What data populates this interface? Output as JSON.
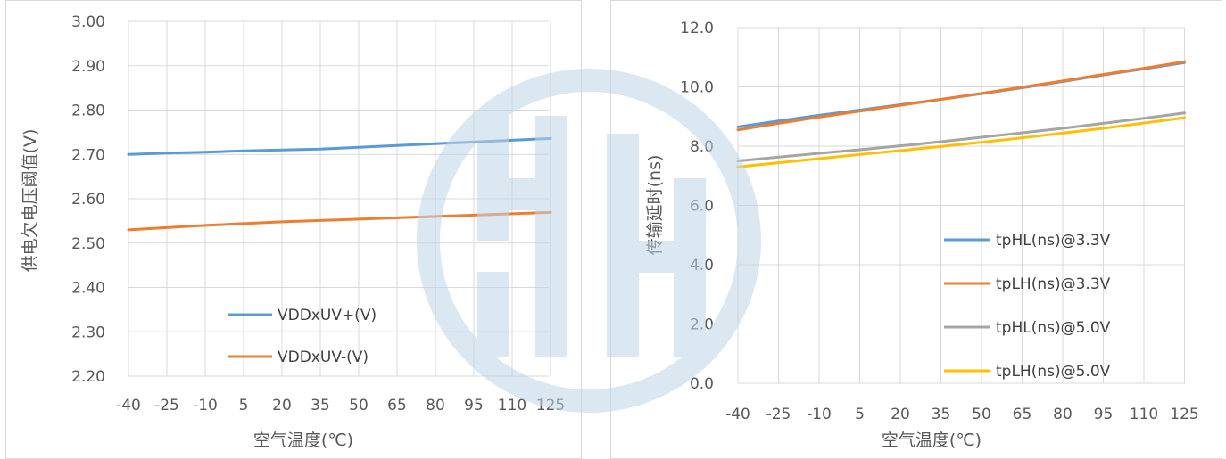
{
  "colors": {
    "blue": "#5B9BD5",
    "orange": "#ED7D31",
    "gray": "#A5A5A5",
    "yellow": "#FFC000",
    "watermark": "#BFD5E6"
  },
  "chart_data": [
    {
      "type": "line",
      "categories": [
        "-40",
        "-25",
        "-10",
        "5",
        "20",
        "35",
        "50",
        "65",
        "80",
        "95",
        "110",
        "125"
      ],
      "x": [
        -40,
        -25,
        -10,
        5,
        20,
        35,
        50,
        65,
        80,
        95,
        110,
        125
      ],
      "xlabel": "空气温度(℃)",
      "ylabel": "供电欠电压阈值(V)",
      "ylim": [
        2.2,
        3.0
      ],
      "yticks": [
        "2.20",
        "2.30",
        "2.40",
        "2.50",
        "2.60",
        "2.70",
        "2.80",
        "2.90",
        "3.00"
      ],
      "grid": true,
      "legend_position": "bottom-center",
      "series": [
        {
          "name": "VDDxUV+(V)",
          "color": "#5B9BD5",
          "values": [
            2.7,
            2.703,
            2.705,
            2.708,
            2.71,
            2.712,
            2.716,
            2.72,
            2.724,
            2.728,
            2.732,
            2.736
          ]
        },
        {
          "name": "VDDxUV-(V)",
          "color": "#ED7D31",
          "values": [
            2.53,
            2.535,
            2.54,
            2.544,
            2.548,
            2.551,
            2.554,
            2.557,
            2.56,
            2.563,
            2.566,
            2.569
          ]
        }
      ]
    },
    {
      "type": "line",
      "categories": [
        "-40",
        "-25",
        "-10",
        "5",
        "20",
        "35",
        "50",
        "65",
        "80",
        "95",
        "110",
        "125"
      ],
      "x": [
        -40,
        -25,
        -10,
        5,
        20,
        35,
        50,
        65,
        80,
        95,
        110,
        125
      ],
      "xlabel": "空气温度(℃)",
      "ylabel": "传输延时(ns)",
      "ylim": [
        0,
        12
      ],
      "yticks": [
        "0.0",
        "2.0",
        "4.0",
        "6.0",
        "8.0",
        "10.0",
        "12.0"
      ],
      "grid": true,
      "legend_position": "right",
      "series": [
        {
          "name": "tpHL(ns)@3.3V",
          "color": "#5B9BD5",
          "values": [
            8.65,
            8.85,
            9.04,
            9.22,
            9.4,
            9.58,
            9.77,
            9.97,
            10.18,
            10.4,
            10.61,
            10.82
          ]
        },
        {
          "name": "tpLH(ns)@3.3V",
          "color": "#ED7D31",
          "values": [
            8.55,
            8.77,
            8.98,
            9.18,
            9.38,
            9.58,
            9.78,
            9.99,
            10.2,
            10.42,
            10.63,
            10.85
          ]
        },
        {
          "name": "tpHL(ns)@5.0V",
          "color": "#A5A5A5",
          "values": [
            7.5,
            7.63,
            7.76,
            7.88,
            8.01,
            8.15,
            8.3,
            8.45,
            8.6,
            8.77,
            8.94,
            9.12
          ]
        },
        {
          "name": "tpLH(ns)@5.0V",
          "color": "#FFC000",
          "values": [
            7.3,
            7.44,
            7.58,
            7.72,
            7.85,
            7.99,
            8.13,
            8.28,
            8.44,
            8.6,
            8.78,
            8.96
          ]
        }
      ]
    }
  ]
}
